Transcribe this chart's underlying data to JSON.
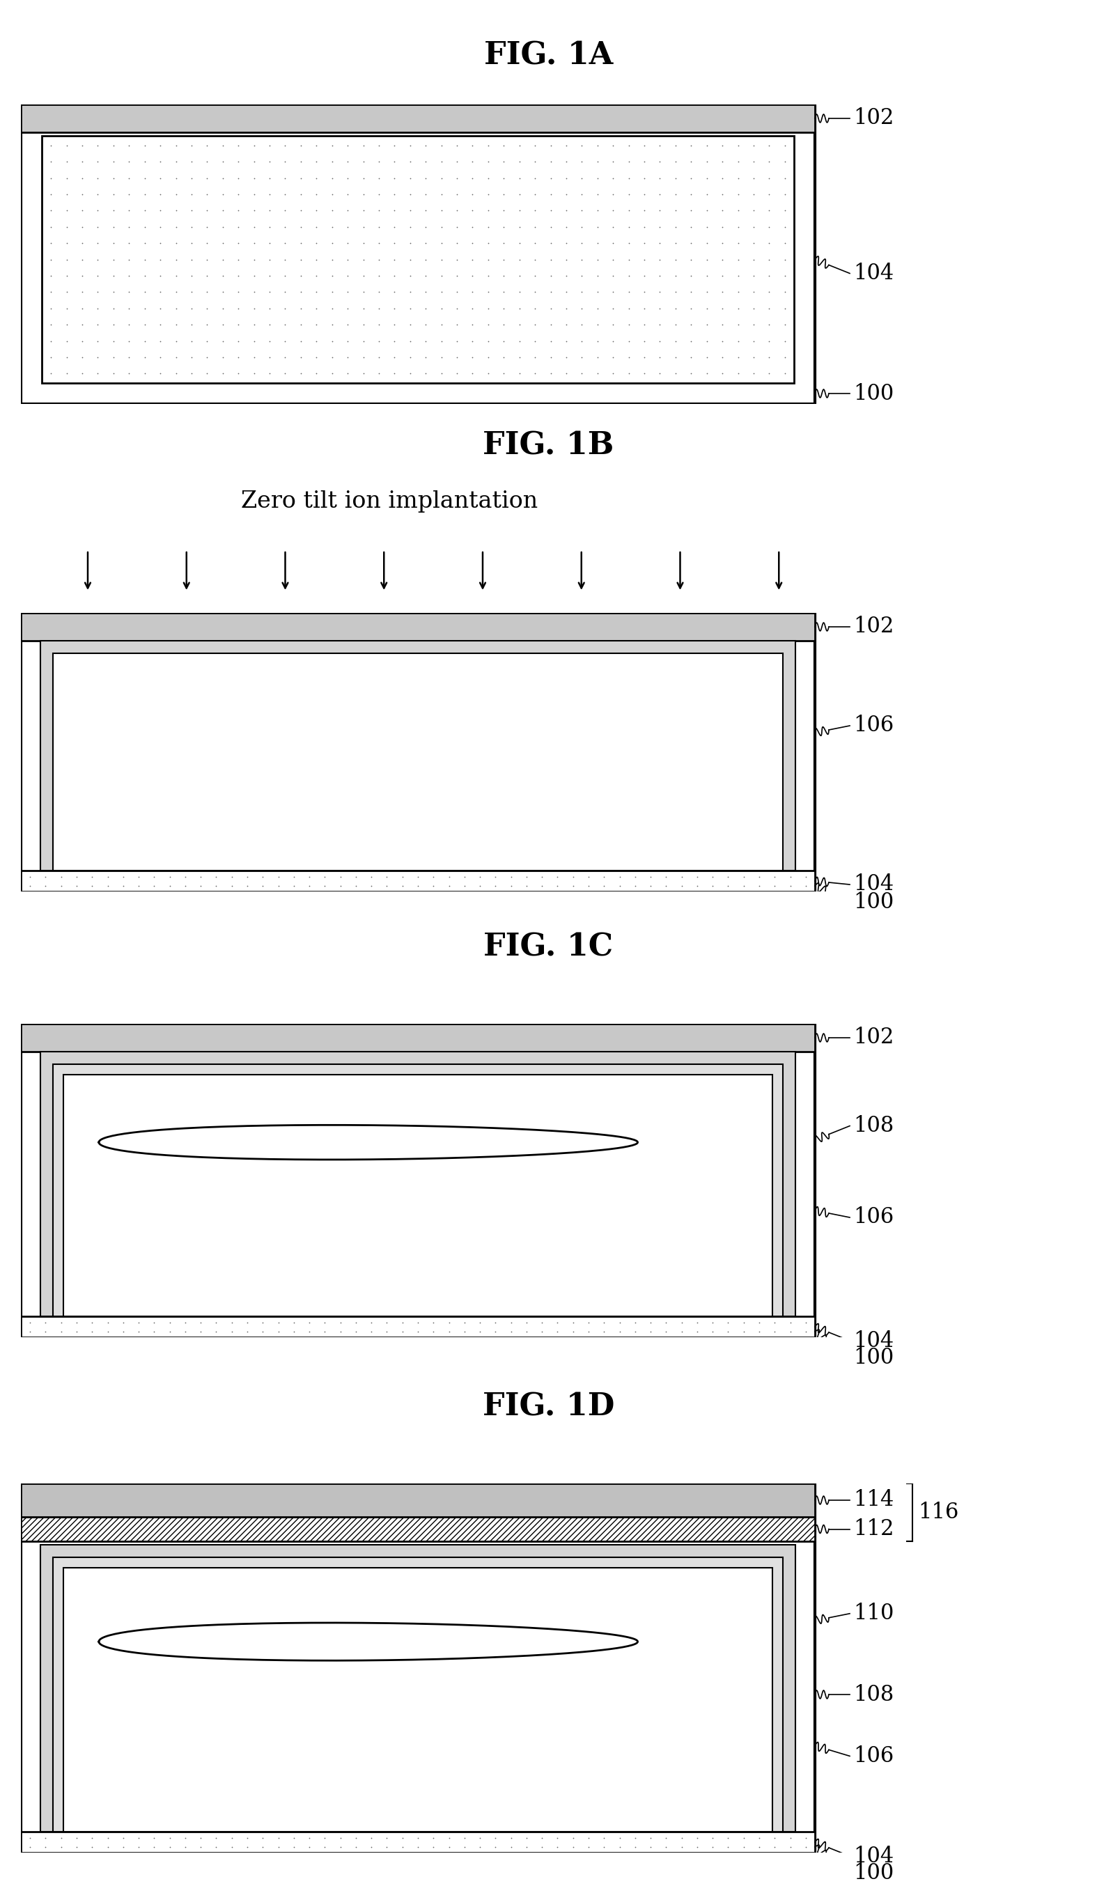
{
  "fig_titles": [
    "FIG. 1A",
    "FIG. 1B",
    "FIG. 1C",
    "FIG. 1D"
  ],
  "bg_color": "#ffffff",
  "ion_implant_text": "Zero tilt ion implantation",
  "title_fontsize": 32,
  "label_fontsize": 22,
  "annotation_fontsize": 22,
  "lw_outer": 3.0,
  "lw_inner": 2.0,
  "lw_thin": 1.5,
  "gray_102": "#c8c8c8",
  "gray_104_dots": "#e8e8e8",
  "gray_106": "#d4d4d4",
  "gray_108": "#e0e0e0",
  "gray_110": "#eeeeee",
  "hatch_112": "////",
  "gray_114": "#c0c0c0"
}
